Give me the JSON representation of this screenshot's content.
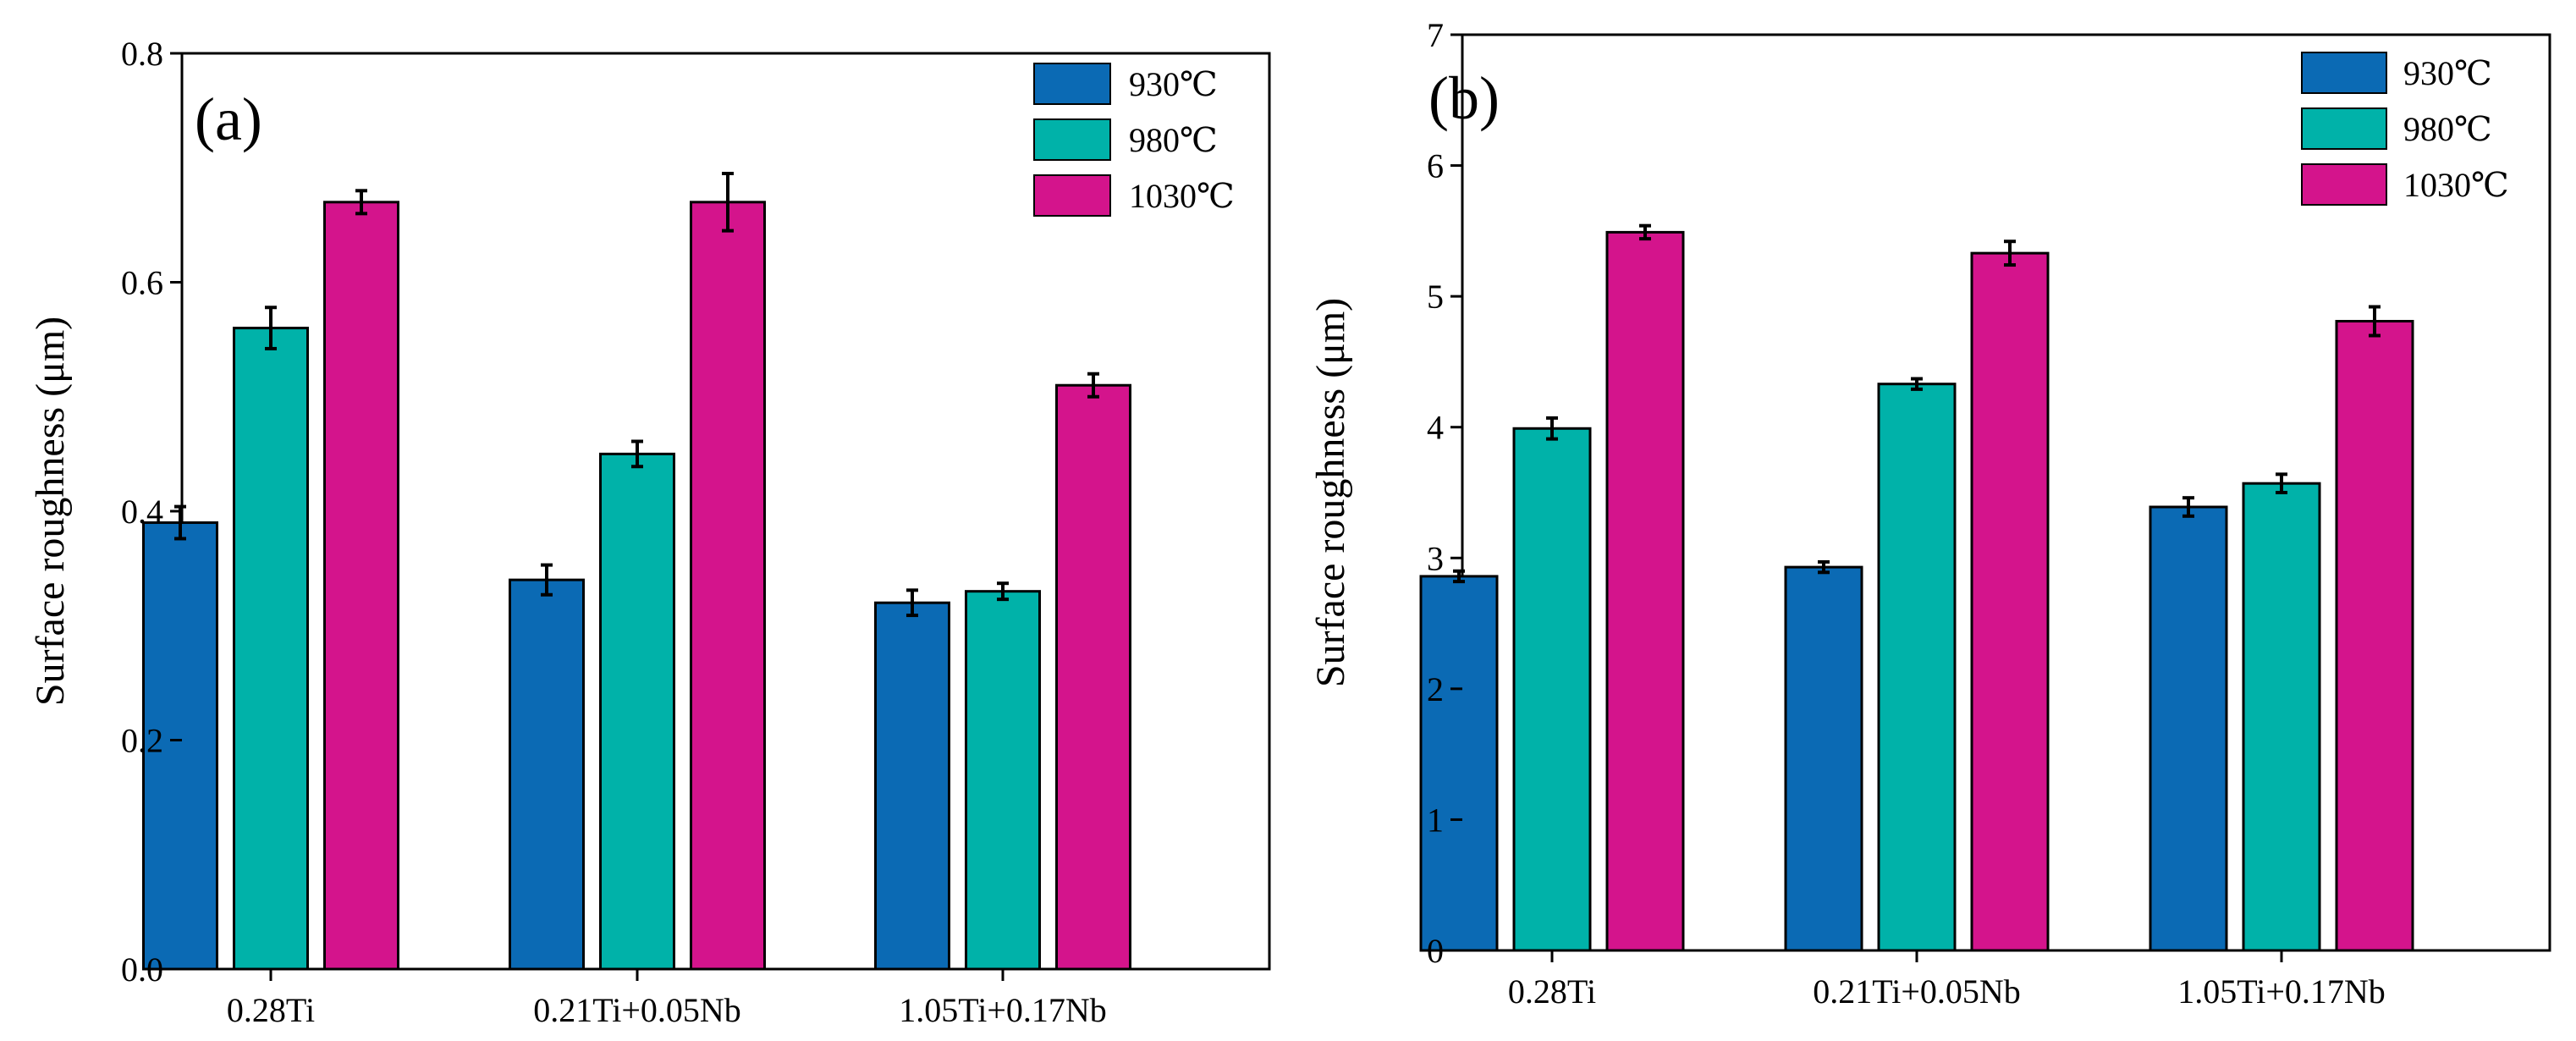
{
  "chart_data": [
    {
      "type": "bar",
      "panel_label": "(a)",
      "title": "",
      "xlabel": "",
      "ylabel": "Surface roughness (μm)",
      "ylim": [
        0,
        0.8
      ],
      "yticks": [
        "0.0",
        "0.2",
        "0.4",
        "0.6",
        "0.8"
      ],
      "categories": [
        "0.28Ti",
        "0.21Ti+0.05Nb",
        "1.05Ti+0.17Nb"
      ],
      "series": [
        {
          "name": "930℃",
          "color": "#0b6ab4",
          "values": [
            0.39,
            0.34,
            0.32
          ],
          "errors": [
            0.014,
            0.013,
            0.011
          ]
        },
        {
          "name": "980℃",
          "color": "#00b2a9",
          "values": [
            0.56,
            0.45,
            0.33
          ],
          "errors": [
            0.018,
            0.011,
            0.007
          ]
        },
        {
          "name": "1030℃",
          "color": "#d4148c",
          "values": [
            0.67,
            0.67,
            0.51
          ],
          "errors": [
            0.01,
            0.025,
            0.01
          ]
        }
      ],
      "legend": "top-right"
    },
    {
      "type": "bar",
      "panel_label": "(b)",
      "title": "",
      "xlabel": "",
      "ylabel": "Surface roughness (μm)",
      "ylim": [
        0,
        7
      ],
      "yticks": [
        "0",
        "1",
        "2",
        "3",
        "4",
        "5",
        "6",
        "7"
      ],
      "categories": [
        "0.28Ti",
        "0.21Ti+0.05Nb",
        "1.05Ti+0.17Nb"
      ],
      "series": [
        {
          "name": "930℃",
          "color": "#0b6ab4",
          "values": [
            2.86,
            2.93,
            3.39
          ],
          "errors": [
            0.04,
            0.04,
            0.07
          ]
        },
        {
          "name": "980℃",
          "color": "#00b2a9",
          "values": [
            3.99,
            4.33,
            3.57
          ],
          "errors": [
            0.08,
            0.04,
            0.07
          ]
        },
        {
          "name": "1030℃",
          "color": "#d4148c",
          "values": [
            5.49,
            5.33,
            4.81
          ],
          "errors": [
            0.05,
            0.09,
            0.11
          ]
        }
      ],
      "legend": "top-right"
    }
  ]
}
